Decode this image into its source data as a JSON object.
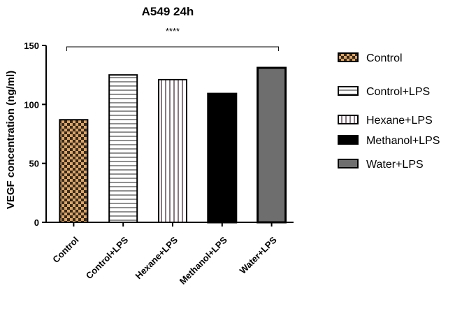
{
  "chart_data": {
    "type": "bar",
    "title": "A549 24h",
    "ylabel": "VEGF  concentration  (ng/ml)",
    "xlabel": "",
    "ylim": [
      0,
      150
    ],
    "yticks": [
      "0",
      "50",
      "100",
      "150"
    ],
    "categories": [
      "Control",
      "Control+LPS",
      "Hexane+LPS",
      "Methanol+LPS",
      "Water+LPS"
    ],
    "values": [
      87,
      125,
      121,
      109,
      131
    ],
    "fills": [
      "checker",
      "horizontal-stripes",
      "vertical-stripes",
      "solid-black",
      "solid-gray"
    ],
    "colors": {
      "control_checker_a": "#d9a56b",
      "control_checker_b": "#3a2a1a",
      "methanol": "#000000",
      "water": "#6e6e6e",
      "axis": "#000000"
    },
    "significance": {
      "label": "****",
      "from_category": "Control",
      "to_category": "Water+LPS"
    },
    "legend": {
      "placement": "right",
      "items": [
        "Control",
        "Control+LPS",
        "Hexane+LPS",
        "Methanol+LPS",
        "Water+LPS"
      ]
    },
    "grid": false
  }
}
